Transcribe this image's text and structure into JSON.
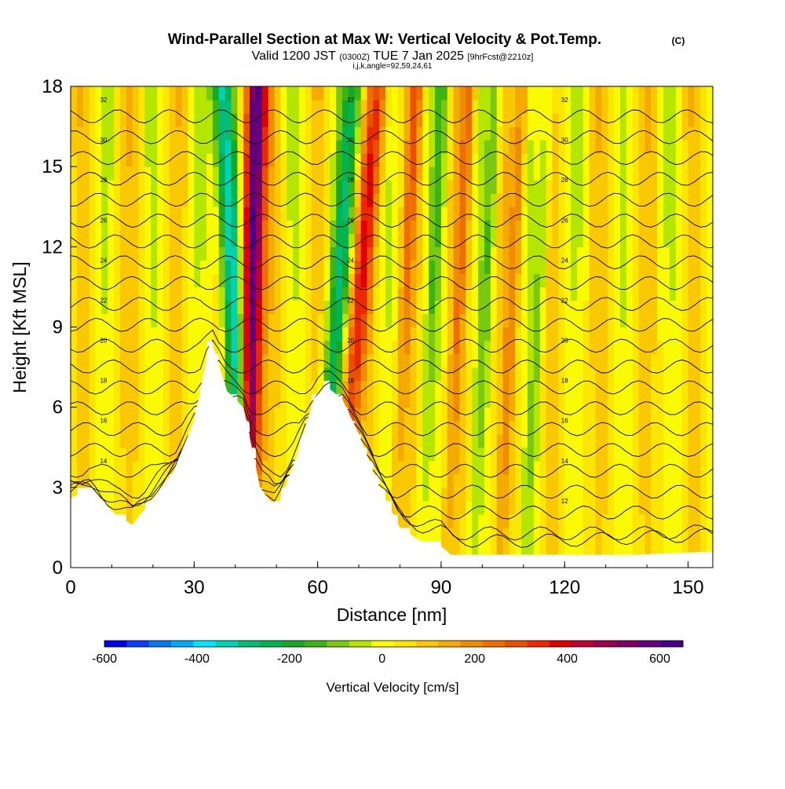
{
  "chart_data": {
    "type": "heatmap",
    "title": "Wind-Parallel Section at Max W: Vertical Velocity & Pot.Temp.",
    "title_mark": "(C)",
    "subtitle": {
      "prefix": "Valid 1200 JST",
      "utc": "(0300Z)",
      "date": "TUE 7 Jan 2025",
      "fcst": "[9hrFcst@2210z]"
    },
    "grid_info": "i,j,k,angle=92,59,24,61",
    "xlabel": "Distance [nm]",
    "ylabel": "Height [Kft MSL]",
    "xlim": [
      0,
      156
    ],
    "ylim": [
      0,
      18
    ],
    "x_ticks": [
      "0",
      "30",
      "60",
      "90",
      "120",
      "150"
    ],
    "x_tick_values": [
      0,
      30,
      60,
      90,
      120,
      150
    ],
    "y_ticks": [
      "0",
      "3",
      "6",
      "9",
      "12",
      "15",
      "18"
    ],
    "y_tick_values": [
      0,
      3,
      6,
      9,
      12,
      15,
      18
    ],
    "colorbar": {
      "label": "Vertical Velocity [cm/s]",
      "range": [
        -600,
        650
      ],
      "tick_labels": [
        "-600",
        "-400",
        "-200",
        "0",
        "200",
        "400",
        "600"
      ],
      "tick_values": [
        -600,
        -400,
        -200,
        0,
        200,
        400,
        600
      ],
      "colors": [
        "#0000f0",
        "#0a3cff",
        "#0a78f0",
        "#00aaff",
        "#00e6ff",
        "#00d2b4",
        "#00be78",
        "#00b450",
        "#14aa28",
        "#3cb414",
        "#78c814",
        "#b4e600",
        "#fafa00",
        "#fae600",
        "#fac800",
        "#f5aa00",
        "#f08c00",
        "#f06e00",
        "#eb5000",
        "#eb2800",
        "#e10000",
        "#be0032",
        "#a00050",
        "#820064",
        "#64007d",
        "#46008c"
      ]
    },
    "velocity_features": [
      {
        "name": "downdraft",
        "x_top": 37,
        "x_bottom": 42.5,
        "value": -450
      },
      {
        "name": "updraft",
        "x_top": 45,
        "x_bottom": 42.5,
        "value": 620
      },
      {
        "name": "wave-updraft",
        "x_top": 75,
        "x_bottom": 64,
        "value": 280
      },
      {
        "name": "wave-downdraft",
        "x_top": 69,
        "x_bottom": 60,
        "value": -250
      }
    ],
    "theta_contour_labels": [
      "32",
      "30",
      "28",
      "26",
      "24",
      "22",
      "20",
      "18",
      "16",
      "14",
      "12"
    ],
    "terrain_heights_kft": [
      [
        0,
        2.6
      ],
      [
        5,
        3.0
      ],
      [
        10,
        2.1
      ],
      [
        15,
        1.6
      ],
      [
        20,
        2.6
      ],
      [
        25,
        3.6
      ],
      [
        30,
        5.5
      ],
      [
        34,
        8.6
      ],
      [
        38,
        6.6
      ],
      [
        42,
        6.0
      ],
      [
        46,
        3.0
      ],
      [
        50,
        2.2
      ],
      [
        55,
        4.2
      ],
      [
        59,
        6.3
      ],
      [
        62,
        6.8
      ],
      [
        66,
        6.3
      ],
      [
        70,
        5.0
      ],
      [
        75,
        3.0
      ],
      [
        80,
        1.5
      ],
      [
        85,
        1.0
      ],
      [
        90,
        0.8
      ],
      [
        93,
        0.4
      ],
      [
        100,
        0.3
      ],
      [
        120,
        0.35
      ],
      [
        140,
        0.5
      ],
      [
        156,
        0.6
      ]
    ]
  }
}
